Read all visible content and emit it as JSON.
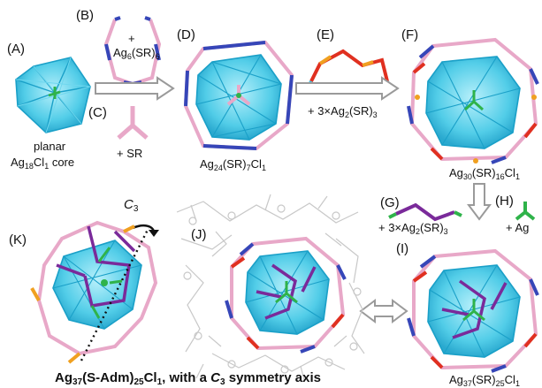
{
  "panels": {
    "A": {
      "letter": "(A)",
      "caption_line1": "planar",
      "caption_line2_prefix": "Ag",
      "caption_line2_sub1": "18",
      "caption_line2_mid": "Cl",
      "caption_line2_sub2": "1",
      "caption_line2_suffix": " core"
    },
    "B": {
      "letter": "(B)",
      "plus": "+",
      "formula_prefix": "Ag",
      "formula_sub1": "6",
      "formula_mid": "(SR)",
      "formula_sub2": "6"
    },
    "C": {
      "letter": "(C)",
      "caption": "+ SR"
    },
    "D": {
      "letter": "(D)",
      "formula_prefix": "Ag",
      "formula_sub1": "24",
      "formula_mid": "(SR)",
      "formula_sub2": "7",
      "formula_el": "Cl",
      "formula_sub3": "1"
    },
    "E": {
      "letter": "(E)",
      "caption_prefix": "+ 3×Ag",
      "caption_sub1": "2",
      "caption_mid": "(SR)",
      "caption_sub2": "3"
    },
    "F": {
      "letter": "(F)",
      "formula_prefix": "Ag",
      "formula_sub1": "30",
      "formula_mid": "(SR)",
      "formula_sub2": "16",
      "formula_el": "Cl",
      "formula_sub3": "1"
    },
    "G": {
      "letter": "(G)",
      "caption_prefix": "+ 3×Ag",
      "caption_sub1": "2",
      "caption_mid": "(SR)",
      "caption_sub2": "3"
    },
    "H": {
      "letter": "(H)",
      "caption": "+ Ag"
    },
    "I": {
      "letter": "(I)",
      "formula_prefix": "Ag",
      "formula_sub1": "37",
      "formula_mid": "(SR)",
      "formula_sub2": "25",
      "formula_el": "Cl",
      "formula_sub3": "1"
    },
    "J": {
      "letter": "(J)"
    },
    "K": {
      "letter": "(K)",
      "axis_prefix": "C",
      "axis_sub": "3"
    }
  },
  "bottom_caption": {
    "prefix": "Ag",
    "sub1": "37",
    "mid": "(S-Adm)",
    "sub2": "25",
    "el": "Cl",
    "sub3": "1",
    "suffix": ", with a ",
    "axis_prefix": "C",
    "axis_sub": "3",
    "tail": " symmetry axis"
  },
  "colors": {
    "cluster": "#3cc8e8",
    "cluster_dark": "#1a9cc4",
    "chloride": "#2fb34a",
    "thiolate_pink": "#e8a8c8",
    "thiolate_blue": "#3646b8",
    "red_s": "#e03020",
    "orange_ag": "#f0a020",
    "purple": "#7a2a9a",
    "arrow_gray": "#9a9a9a"
  }
}
